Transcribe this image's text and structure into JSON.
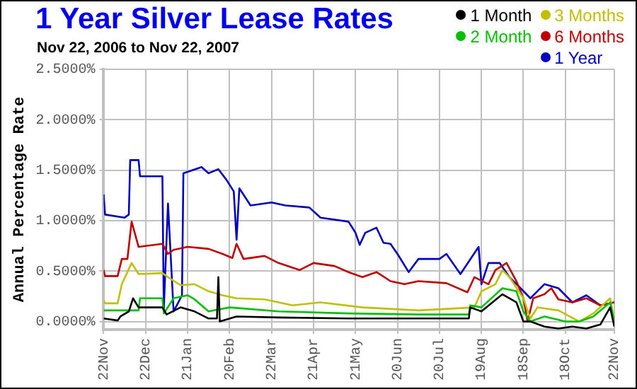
{
  "chart_data": {
    "type": "line",
    "title": "1 Year Silver Lease Rates",
    "subtitle": "Nov 22, 2006 to Nov 22, 2007",
    "ylabel": "Annual Percentage Rate",
    "xlim": [
      "2006-11-22",
      "2007-11-22"
    ],
    "xticks": [
      {
        "value": "2006-11-22",
        "label": "22Nov"
      },
      {
        "value": "2006-12-22",
        "label": "22Dec"
      },
      {
        "value": "2007-01-21",
        "label": "21Jan"
      },
      {
        "value": "2007-02-20",
        "label": "20Feb"
      },
      {
        "value": "2007-03-22",
        "label": "22Mar"
      },
      {
        "value": "2007-04-21",
        "label": "21Apr"
      },
      {
        "value": "2007-05-21",
        "label": "21May"
      },
      {
        "value": "2007-06-20",
        "label": "20Jun"
      },
      {
        "value": "2007-07-20",
        "label": "20Jul"
      },
      {
        "value": "2007-08-19",
        "label": "19Aug"
      },
      {
        "value": "2007-09-18",
        "label": "18Sep"
      },
      {
        "value": "2007-10-18",
        "label": "18Oct"
      },
      {
        "value": "2007-11-22",
        "label": "22Nov"
      }
    ],
    "ylim": [
      -0.08,
      2.5
    ],
    "yticks": [
      {
        "value": 0,
        "label": "0.0000%"
      },
      {
        "value": 0.5,
        "label": "0.5000%"
      },
      {
        "value": 1,
        "label": "1.0000%"
      },
      {
        "value": 1.5,
        "label": "1.5000%"
      },
      {
        "value": 2,
        "label": "2.0000%"
      },
      {
        "value": 2.5,
        "label": "2.5000%"
      }
    ],
    "grid": true,
    "legend": "top right",
    "marker": "none",
    "line_style": "solid",
    "series": [
      {
        "name": "1 Month",
        "color": "#000000",
        "x": [
          "2006-11-22",
          "2006-12-02",
          "2006-12-04",
          "2006-12-10",
          "2006-12-13",
          "2006-12-17",
          "2007-01-03",
          "2007-01-06",
          "2007-01-16",
          "2007-01-26",
          "2007-02-05",
          "2007-02-11",
          "2007-02-12",
          "2007-02-13",
          "2007-02-25",
          "2007-03-27",
          "2007-05-16",
          "2007-07-05",
          "2007-08-10",
          "2007-08-11",
          "2007-08-19",
          "2007-09-03",
          "2007-09-13",
          "2007-09-18",
          "2007-09-23",
          "2007-10-03",
          "2007-10-13",
          "2007-10-23",
          "2007-11-02",
          "2007-11-12",
          "2007-11-19",
          "2007-11-22"
        ],
        "values": [
          0.03,
          0.01,
          0.05,
          0.1,
          0.23,
          0.14,
          0.14,
          0.07,
          0.14,
          0.1,
          0.03,
          0.03,
          0.44,
          0.0,
          0.05,
          0.04,
          0.03,
          0.03,
          0.03,
          0.14,
          0.1,
          0.27,
          0.19,
          0.0,
          0.0,
          -0.05,
          -0.07,
          -0.05,
          -0.07,
          -0.03,
          0.14,
          -0.05
        ]
      },
      {
        "name": "2 Month",
        "color": "#00c000",
        "x": [
          "2006-11-22",
          "2006-12-17",
          "2006-12-18",
          "2007-01-03",
          "2007-01-04",
          "2007-01-11",
          "2007-01-21",
          "2007-01-26",
          "2007-02-05",
          "2007-02-20",
          "2007-03-27",
          "2007-05-16",
          "2007-07-05",
          "2007-08-10",
          "2007-08-11",
          "2007-08-19",
          "2007-09-03",
          "2007-09-13",
          "2007-09-18",
          "2007-09-23",
          "2007-10-03",
          "2007-10-18",
          "2007-10-28",
          "2007-11-07",
          "2007-11-19",
          "2007-11-22"
        ],
        "values": [
          0.11,
          0.11,
          0.23,
          0.23,
          0.08,
          0.23,
          0.26,
          0.22,
          0.1,
          0.14,
          0.1,
          0.08,
          0.07,
          0.07,
          0.16,
          0.14,
          0.33,
          0.3,
          0.1,
          0.0,
          0.05,
          0.0,
          0.0,
          0.05,
          0.19,
          0.0
        ]
      },
      {
        "name": "3 Months",
        "color": "#c0c000",
        "x": [
          "2006-11-22",
          "2006-11-23",
          "2006-12-02",
          "2006-12-05",
          "2006-12-12",
          "2006-12-17",
          "2007-01-03",
          "2007-01-07",
          "2007-01-16",
          "2007-01-26",
          "2007-02-05",
          "2007-02-15",
          "2007-02-25",
          "2007-03-17",
          "2007-04-06",
          "2007-04-26",
          "2007-05-26",
          "2007-07-05",
          "2007-08-14",
          "2007-08-19",
          "2007-08-29",
          "2007-09-03",
          "2007-09-08",
          "2007-09-18",
          "2007-09-23",
          "2007-09-28",
          "2007-10-13",
          "2007-10-28",
          "2007-11-07",
          "2007-11-19",
          "2007-11-22"
        ],
        "values": [
          0.21,
          0.18,
          0.18,
          0.37,
          0.58,
          0.47,
          0.48,
          0.44,
          0.36,
          0.37,
          0.3,
          0.26,
          0.23,
          0.22,
          0.16,
          0.19,
          0.14,
          0.11,
          0.14,
          0.3,
          0.37,
          0.51,
          0.44,
          0.23,
          0.03,
          0.14,
          0.11,
          0.0,
          0.08,
          0.23,
          0.0
        ]
      },
      {
        "name": "6 Months",
        "color": "#c00000",
        "x": [
          "2006-11-22",
          "2006-11-23",
          "2006-12-02",
          "2006-12-05",
          "2006-12-09",
          "2006-12-12",
          "2006-12-17",
          "2007-01-03",
          "2007-01-07",
          "2007-01-11",
          "2007-01-21",
          "2007-02-05",
          "2007-02-15",
          "2007-02-22",
          "2007-02-25",
          "2007-03-02",
          "2007-03-17",
          "2007-03-27",
          "2007-04-11",
          "2007-04-21",
          "2007-05-06",
          "2007-05-16",
          "2007-05-26",
          "2007-06-05",
          "2007-06-15",
          "2007-06-25",
          "2007-07-05",
          "2007-07-25",
          "2007-08-09",
          "2007-08-14",
          "2007-08-24",
          "2007-08-29",
          "2007-09-06",
          "2007-09-13",
          "2007-09-18",
          "2007-09-21",
          "2007-09-25",
          "2007-10-03",
          "2007-10-08",
          "2007-10-13",
          "2007-10-23",
          "2007-11-02",
          "2007-11-12",
          "2007-11-22"
        ],
        "values": [
          0.51,
          0.45,
          0.45,
          0.62,
          0.62,
          0.99,
          0.74,
          0.77,
          0.67,
          0.71,
          0.74,
          0.72,
          0.67,
          0.63,
          0.77,
          0.62,
          0.65,
          0.58,
          0.51,
          0.58,
          0.55,
          0.49,
          0.44,
          0.49,
          0.4,
          0.37,
          0.4,
          0.38,
          0.29,
          0.44,
          0.37,
          0.51,
          0.58,
          0.4,
          0.23,
          0.0,
          0.23,
          0.27,
          0.33,
          0.22,
          0.19,
          0.23,
          0.16,
          0.19
        ]
      },
      {
        "name": "1 Year",
        "color": "#0000c0",
        "x": [
          "2006-11-22",
          "2006-11-23",
          "2006-12-07",
          "2006-12-10",
          "2006-12-11",
          "2006-12-17",
          "2006-12-18",
          "2007-01-03",
          "2007-01-04",
          "2007-01-07",
          "2007-01-11",
          "2007-01-17",
          "2007-01-18",
          "2007-01-31",
          "2007-02-05",
          "2007-02-12",
          "2007-02-18",
          "2007-02-23",
          "2007-02-25",
          "2007-02-27",
          "2007-03-07",
          "2007-03-22",
          "2007-04-01",
          "2007-04-18",
          "2007-04-26",
          "2007-05-16",
          "2007-05-21",
          "2007-05-24",
          "2007-05-28",
          "2007-06-05",
          "2007-06-10",
          "2007-06-15",
          "2007-06-20",
          "2007-06-28",
          "2007-07-05",
          "2007-07-20",
          "2007-07-25",
          "2007-08-04",
          "2007-08-17",
          "2007-08-19",
          "2007-08-24",
          "2007-09-01",
          "2007-09-08",
          "2007-09-16",
          "2007-09-23",
          "2007-10-03",
          "2007-10-13",
          "2007-10-23",
          "2007-11-02",
          "2007-11-12",
          "2007-11-22"
        ],
        "values": [
          1.26,
          1.06,
          1.03,
          1.06,
          1.6,
          1.6,
          1.44,
          1.44,
          0.12,
          1.17,
          0.1,
          0.26,
          1.47,
          1.53,
          1.47,
          1.51,
          1.4,
          1.29,
          0.81,
          1.32,
          1.15,
          1.18,
          1.15,
          1.13,
          1.03,
          0.99,
          0.88,
          0.76,
          0.88,
          0.93,
          0.78,
          0.77,
          0.67,
          0.49,
          0.62,
          0.62,
          0.67,
          0.47,
          0.74,
          0.37,
          0.58,
          0.58,
          0.44,
          0.33,
          0.23,
          0.37,
          0.33,
          0.19,
          0.26,
          0.16,
          0.19
        ]
      }
    ]
  }
}
